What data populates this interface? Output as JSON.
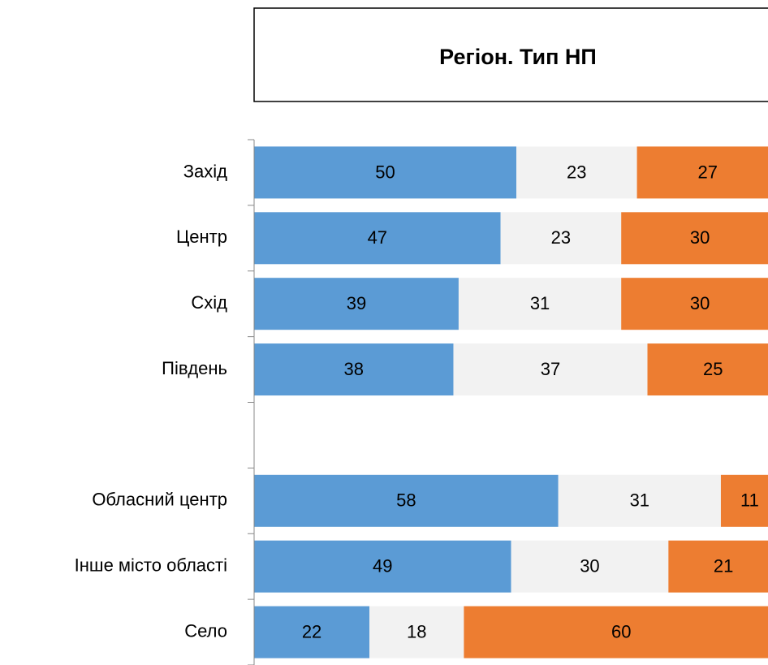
{
  "chart_data": {
    "type": "stacked_bar_horizontal",
    "title": "Регіон. Тип НП",
    "categories": [
      "Захід",
      "Центр",
      "Схід",
      "Південь",
      null,
      "Обласний центр",
      "Інше місто області",
      "Село"
    ],
    "series": [
      {
        "color": "#5b9bd5",
        "values": [
          50,
          47,
          39,
          38,
          null,
          58,
          49,
          22
        ]
      },
      {
        "color": "#f2f2f2",
        "values": [
          23,
          23,
          31,
          37,
          null,
          31,
          30,
          18
        ]
      },
      {
        "color": "#ed7d31",
        "values": [
          27,
          30,
          30,
          25,
          null,
          11,
          21,
          60
        ]
      }
    ],
    "xlim": [
      0,
      100
    ]
  }
}
